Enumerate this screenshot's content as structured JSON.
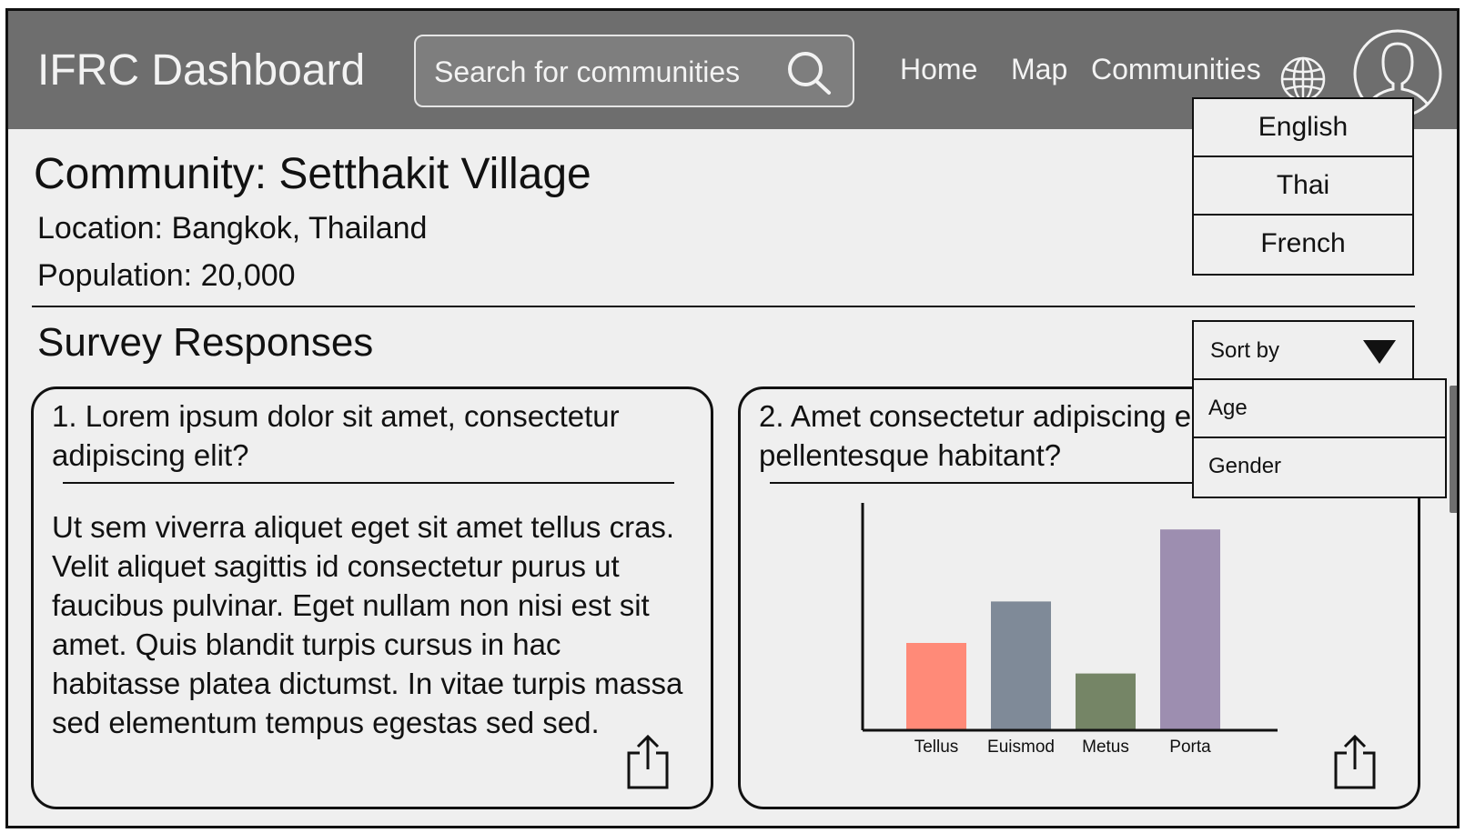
{
  "header": {
    "brand": "IFRC Dashboard",
    "search_placeholder": "Search for communities",
    "nav": {
      "home": "Home",
      "map": "Map",
      "communities": "Communities"
    },
    "icons": {
      "search": "search-icon",
      "language": "globe-icon",
      "profile": "user-avatar-icon"
    }
  },
  "language_menu": {
    "options": [
      "English",
      "Thai",
      "French"
    ]
  },
  "community": {
    "title": "Community: Setthakit Village",
    "location": "Location: Bangkok, Thailand",
    "population": "Population: 20,000"
  },
  "survey": {
    "title": "Survey Responses",
    "sort": {
      "label": "Sort by",
      "options": [
        "Age",
        "Gender"
      ]
    },
    "cards": [
      {
        "question_line1": "1. Lorem ipsum dolor sit amet, consectetur",
        "question_line2": "adipiscing elit?",
        "answer": "Ut sem viverra aliquet eget sit amet tellus cras. Velit aliquet sagittis id consectetur purus ut faucibus pulvinar. Eget nullam non nisi est sit amet. Quis blandit turpis cursus in hac habitasse platea dictumst. In vitae turpis massa sed elementum tempus egestas sed sed."
      },
      {
        "question_line1": "2. Amet consectetur adipiscing elit",
        "question_line2": "pellentesque habitant?"
      }
    ]
  },
  "chart_data": {
    "type": "bar",
    "categories": [
      "Tellus",
      "Euismod",
      "Metus",
      "Porta"
    ],
    "values": [
      40,
      59,
      26,
      92
    ],
    "colors": [
      "#ff8a78",
      "#7f8a98",
      "#758566",
      "#9d8eb0"
    ],
    "ylim": [
      0,
      100
    ],
    "grid": false,
    "title": "",
    "xlabel": "",
    "ylabel": ""
  }
}
